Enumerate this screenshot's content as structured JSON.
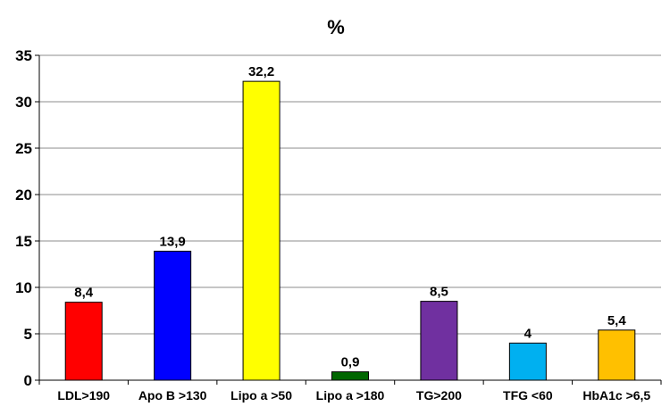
{
  "chart_data": {
    "type": "bar",
    "title": "%",
    "xlabel": "",
    "ylabel": "",
    "categories": [
      "LDL>190",
      "Apo B >130",
      "Lipo a >50",
      "Lipo a >180",
      "TG>200",
      "TFG <60",
      "HbA1c >6,5"
    ],
    "values": [
      8.4,
      13.9,
      32.2,
      0.9,
      8.5,
      4,
      5.4
    ],
    "data_labels": [
      "8,4",
      "13,9",
      "32,2",
      "0,9",
      "8,5",
      "4",
      "5,4"
    ],
    "bar_colors": [
      "#ff0000",
      "#0000ff",
      "#ffff00",
      "#006600",
      "#7030a0",
      "#00b0f0",
      "#ffc000"
    ],
    "ylim": [
      0,
      35
    ],
    "yticks": [
      0,
      5,
      10,
      15,
      20,
      25,
      30,
      35
    ],
    "grid": true,
    "legend": "none"
  }
}
